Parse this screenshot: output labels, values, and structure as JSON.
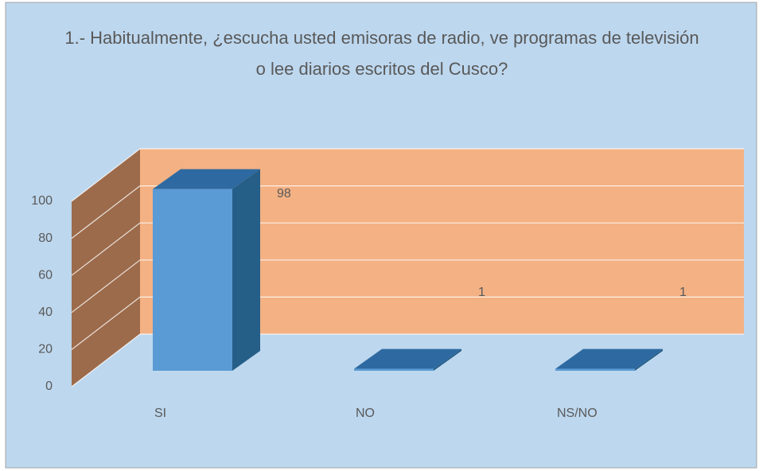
{
  "chart_data": {
    "type": "bar3d",
    "title": "1.- Habitualmente, ¿escucha usted emisoras de radio, ve programas de televisión o lee diarios escritos del Cusco?",
    "categories": [
      "SI",
      "NO",
      "NS/NO"
    ],
    "values": [
      98,
      1,
      1
    ],
    "color": "#5b9bd5",
    "ylim": [
      0,
      100
    ],
    "yticks": [
      0,
      20,
      40,
      60,
      80,
      100
    ],
    "grid": true
  }
}
